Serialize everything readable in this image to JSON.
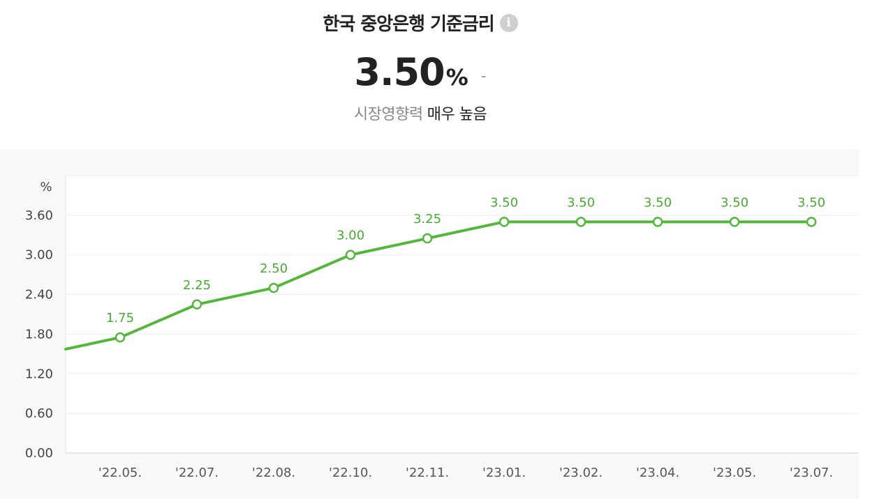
{
  "header": {
    "title": "한국 중앙은행 기준금리",
    "info_icon": "info-icon",
    "value": "3.50",
    "unit": "%",
    "change": "-",
    "impact_label": "시장영향력",
    "impact_value": "매우 높음"
  },
  "chart_data": {
    "type": "line",
    "ylabel": "%",
    "ylim": [
      0,
      4.2
    ],
    "y_ticks": [
      "0.00",
      "0.60",
      "1.20",
      "1.80",
      "2.40",
      "3.00",
      "3.60"
    ],
    "categories": [
      "'22.05.",
      "'22.07.",
      "'22.08.",
      "'22.10.",
      "'22.11.",
      "'23.01.",
      "'23.02.",
      "'23.04.",
      "'23.05.",
      "'23.07."
    ],
    "values": [
      1.75,
      2.25,
      2.5,
      3.0,
      3.25,
      3.5,
      3.5,
      3.5,
      3.5,
      3.5
    ],
    "value_labels": [
      "1.75",
      "2.25",
      "2.50",
      "3.00",
      "3.25",
      "3.50",
      "3.50",
      "3.50",
      "3.50",
      "3.50"
    ],
    "prev_value": 1.5,
    "line_color": "#55b63c",
    "grid": true
  }
}
